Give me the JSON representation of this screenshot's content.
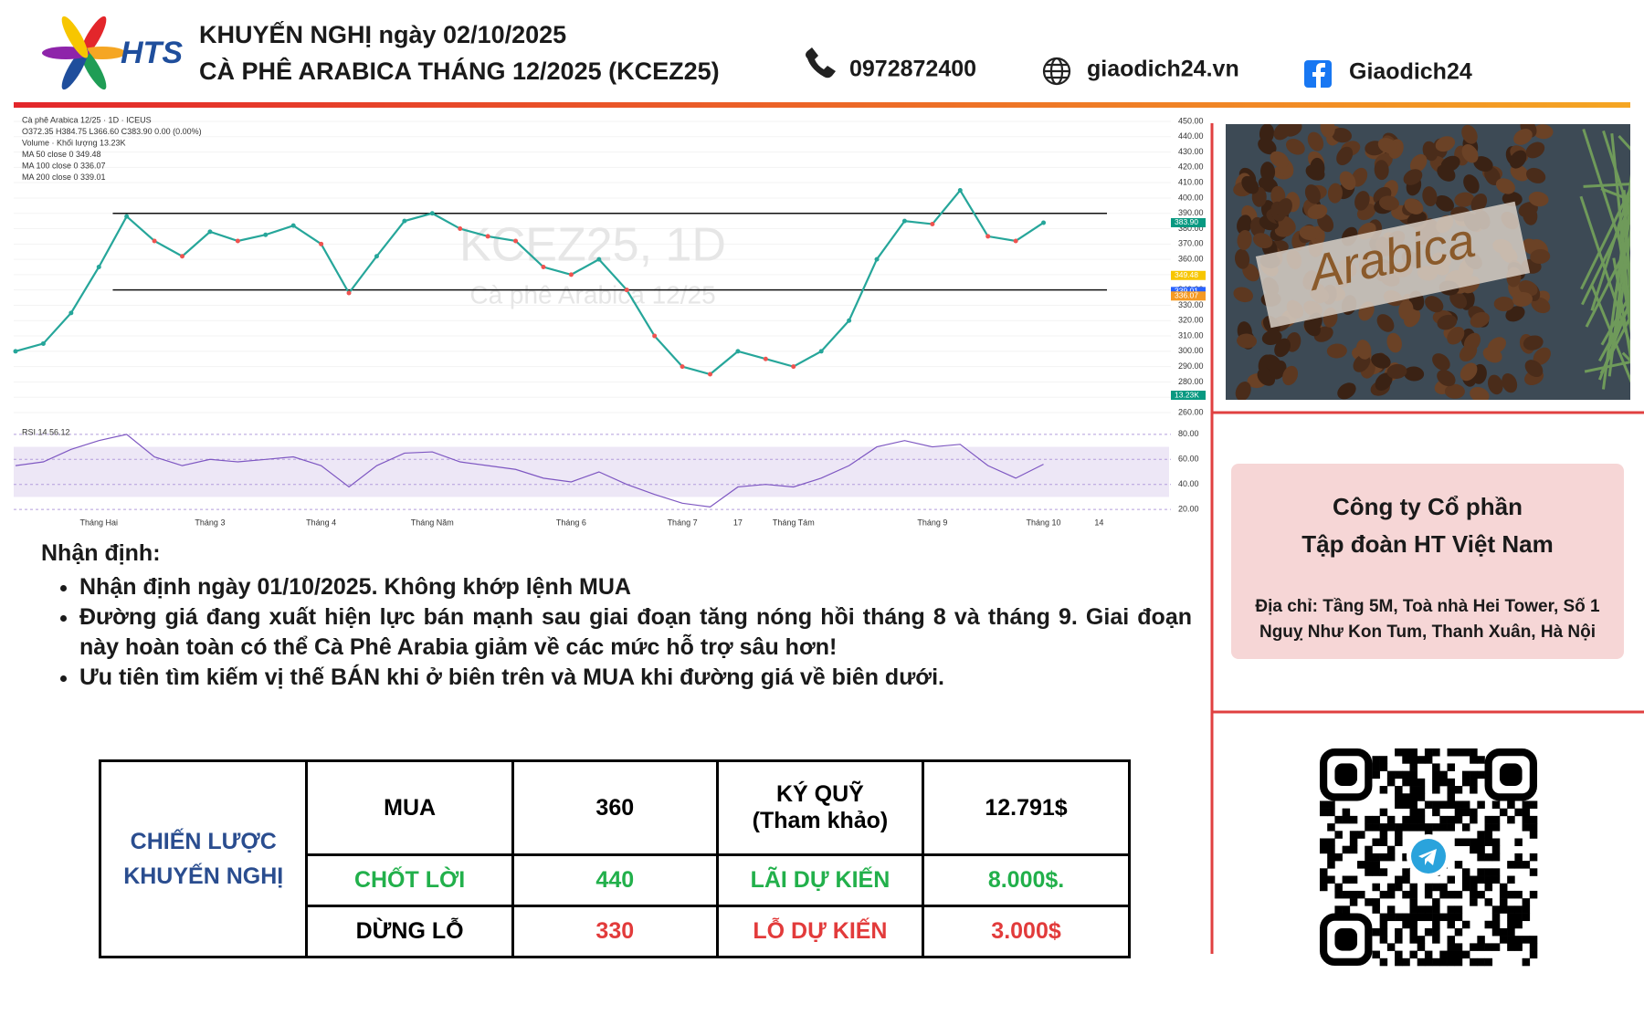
{
  "header": {
    "logo": "HTS",
    "title_lines": [
      "KHUYẾN NGHỊ ngày 02/10/2025",
      "CÀ PHÊ ARABICA THÁNG 12/2025 (KCEZ25)"
    ],
    "phone": "0972872400",
    "website": "giaodich24.vn",
    "facebook": "Giaodich24"
  },
  "chart": {
    "type": "line",
    "header": [
      "Cà phê Arabica 12/25 · 1D · ICEUS",
      "O372.35 H384.75 L366.60 C383.90 0.00 (0.00%)",
      "Volume · Khối lượng 13.23K",
      "MA 50 close 0 349.48",
      "MA 100 close 0 336.07",
      "MA 200 close 0 339.01"
    ],
    "watermark": [
      "KCEZ25, 1D",
      "Cà phê Arabica 12/25"
    ],
    "categories": [
      null,
      null,
      null,
      "Tháng Hai",
      null,
      null,
      null,
      "Tháng 3",
      null,
      null,
      null,
      "Tháng 4",
      null,
      null,
      null,
      "Tháng Năm",
      null,
      null,
      null,
      null,
      "Tháng 6",
      null,
      null,
      null,
      "Tháng 7",
      null,
      "17",
      null,
      "Tháng Tám",
      null,
      null,
      null,
      null,
      "Tháng 9",
      null,
      null,
      null,
      "Tháng 10",
      null,
      "14"
    ],
    "values": [
      300,
      305,
      325,
      355,
      388,
      372,
      362,
      378,
      372,
      376,
      382,
      370,
      338,
      362,
      385,
      390,
      380,
      375,
      372,
      355,
      350,
      360,
      340,
      310,
      290,
      285,
      300,
      295,
      290,
      300,
      320,
      360,
      385,
      383,
      405,
      375,
      372,
      383.9,
      null,
      null
    ],
    "color": "#26a69a",
    "ylim": [
      260,
      450
    ],
    "yticks": [
      {
        "value": 450,
        "label": "450.00"
      },
      {
        "value": 440,
        "label": "440.00"
      },
      {
        "value": 430,
        "label": "430.00"
      },
      {
        "value": 420,
        "label": "420.00"
      },
      {
        "value": 410,
        "label": "410.00"
      },
      {
        "value": 400,
        "label": "400.00"
      },
      {
        "value": 390,
        "label": "390.00"
      },
      {
        "value": 380,
        "label": "380.00"
      },
      {
        "value": 370,
        "label": "370.00"
      },
      {
        "value": 360,
        "label": "360.00"
      },
      {
        "value": 350,
        "label": "350.00"
      },
      {
        "value": 340,
        "label": "340.00"
      },
      {
        "value": 330,
        "label": "330.00"
      },
      {
        "value": 320,
        "label": "320.00"
      },
      {
        "value": 310,
        "label": "310.00"
      },
      {
        "value": 300,
        "label": "300.00"
      },
      {
        "value": 290,
        "label": "290.00"
      },
      {
        "value": 280,
        "label": "280.00"
      },
      {
        "value": 270,
        "label": "270.00"
      },
      {
        "value": 260,
        "label": "260.00"
      }
    ],
    "levels": [
      390,
      340
    ],
    "price_tags": [
      {
        "value": 383.9,
        "label": "383.90",
        "color": "#089981"
      },
      {
        "value": 349.48,
        "label": "349.48",
        "color": "#f7c600"
      },
      {
        "value": 339.01,
        "label": "339.01",
        "color": "#2962ff"
      },
      {
        "value": 336.07,
        "label": "336.07",
        "color": "#f59a23"
      }
    ],
    "volume_tag": "13.23K",
    "rsi": {
      "label": "RSI 14 56.12",
      "color": "#7e57c2",
      "values": [
        55,
        58,
        68,
        75,
        80,
        62,
        55,
        60,
        58,
        60,
        62,
        55,
        38,
        55,
        65,
        66,
        58,
        55,
        52,
        45,
        42,
        50,
        40,
        32,
        25,
        22,
        38,
        40,
        38,
        45,
        55,
        70,
        75,
        70,
        72,
        55,
        45,
        56.12,
        null,
        null
      ],
      "ylim": [
        15,
        85
      ],
      "yticks": [
        {
          "value": 80,
          "label": "80.00"
        },
        {
          "value": 60,
          "label": "60.00"
        },
        {
          "value": 40,
          "label": "40.00"
        },
        {
          "value": 20,
          "label": "20.00"
        }
      ]
    }
  },
  "image": {
    "label": "Arabica"
  },
  "analysis": {
    "heading": "Nhận định:",
    "bullets": [
      "Nhận định ngày 01/10/2025. Không khớp lệnh MUA",
      "Đường giá đang xuất hiện lực bán mạnh sau giai đoạn tăng nóng hồi tháng 8 và tháng 9. Giai đoạn này hoàn toàn có thể Cà Phê Arabia giảm về các mức hỗ trợ sâu hơn!",
      "Ưu tiên tìm kiếm vị thế BÁN khi ở biên trên và MUA khi đường giá về biên dưới."
    ]
  },
  "company": {
    "name_lines": [
      "Công ty Cổ phần",
      "Tập đoàn HT Việt Nam"
    ],
    "address_lines": [
      "Địa chỉ: Tầng 5M, Toà nhà Hei Tower, Số 1",
      "Nguỵ Như Kon Tum, Thanh Xuân, Hà Nội"
    ]
  },
  "table": {
    "strategy": [
      "CHIẾN LƯỢC",
      "KHUYẾN NGHỊ"
    ],
    "rows": [
      [
        "MUA",
        "360",
        [
          "KÝ QUỸ",
          "(Tham khảo)"
        ],
        "12.791$"
      ],
      [
        "CHỐT LỜI",
        "440",
        "LÃI DỰ KIẾN",
        "8.000$."
      ],
      [
        "DỪNG LỖ",
        "330",
        "LỖ DỰ KIẾN",
        "3.000$"
      ]
    ]
  }
}
